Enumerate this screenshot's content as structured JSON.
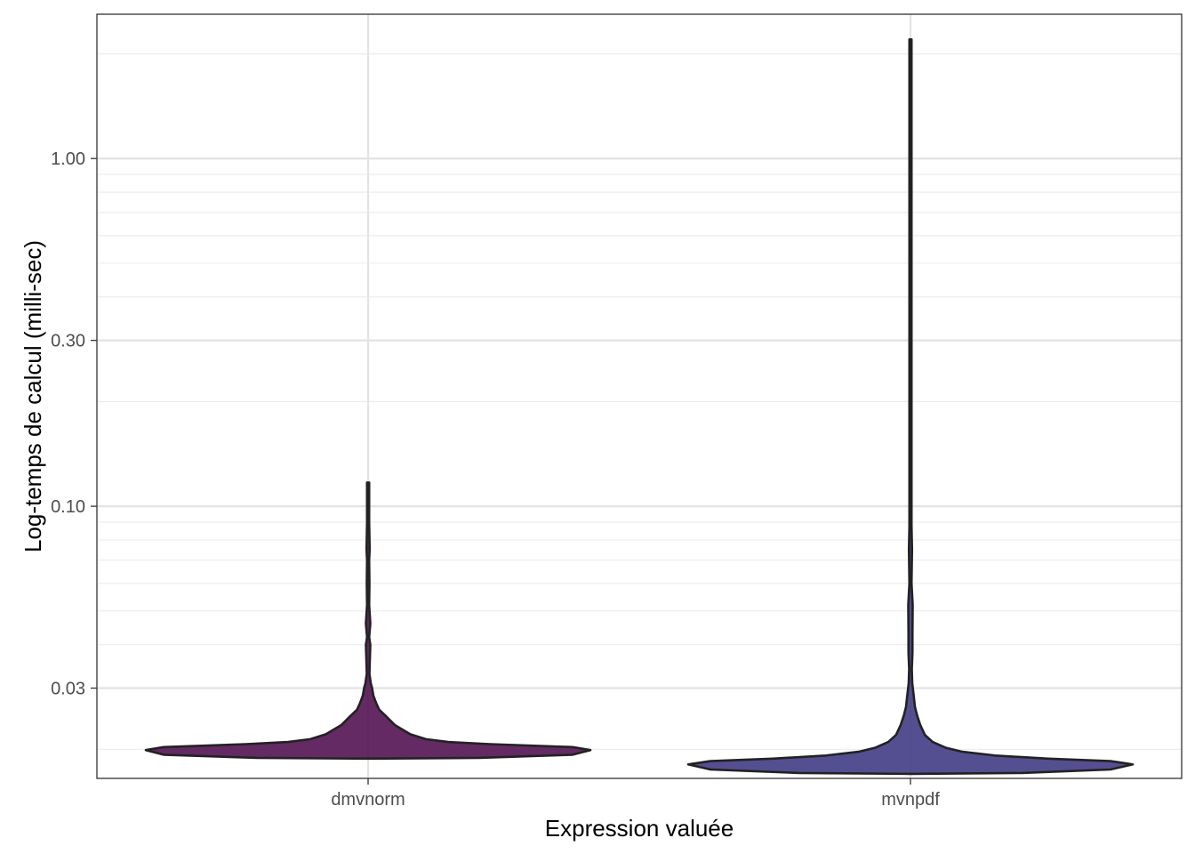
{
  "chart_data": {
    "type": "violin",
    "title": "",
    "xlabel": "Expression valuée",
    "ylabel": "Log-temps de calcul (milli-sec)",
    "y_scale": "log10",
    "ylim": [
      0.0165,
      2.6
    ],
    "yticks": [
      0.03,
      0.1,
      0.3,
      1.0
    ],
    "ytick_labels": [
      "0.03",
      "0.10",
      "0.30",
      "1.00"
    ],
    "y_minor_gridlines": [
      0.02,
      0.04,
      0.05,
      0.06,
      0.07,
      0.08,
      0.09,
      0.2,
      0.4,
      0.5,
      0.6,
      0.7,
      0.8,
      0.9,
      2.0
    ],
    "grid": true,
    "legend": "none",
    "categories": [
      "dmvnorm",
      "mvnpdf"
    ],
    "series": [
      {
        "category": "dmvnorm",
        "color": "#4e0c4f",
        "y_min": 0.0188,
        "y_max": 0.117,
        "density_profile": [
          [
            0.0188,
            0.0
          ],
          [
            0.0189,
            0.5
          ],
          [
            0.0193,
            0.92
          ],
          [
            0.0199,
            1.0
          ],
          [
            0.0203,
            0.92
          ],
          [
            0.0207,
            0.55
          ],
          [
            0.021,
            0.36
          ],
          [
            0.0214,
            0.26
          ],
          [
            0.0221,
            0.19
          ],
          [
            0.0235,
            0.12
          ],
          [
            0.025,
            0.078
          ],
          [
            0.026,
            0.05
          ],
          [
            0.0272,
            0.036
          ],
          [
            0.0285,
            0.024
          ],
          [
            0.03,
            0.018
          ],
          [
            0.031,
            0.012
          ],
          [
            0.033,
            0.006
          ],
          [
            0.04,
            0.01
          ],
          [
            0.042,
            0.004
          ],
          [
            0.046,
            0.01
          ],
          [
            0.052,
            0.004
          ],
          [
            0.06,
            0.006
          ],
          [
            0.07,
            0.004
          ],
          [
            0.075,
            0.007
          ],
          [
            0.09,
            0.004
          ],
          [
            0.117,
            0.004
          ]
        ]
      },
      {
        "category": "mvnpdf",
        "color": "#3c3782",
        "y_min": 0.017,
        "y_max": 2.2,
        "density_profile": [
          [
            0.017,
            0.0
          ],
          [
            0.0171,
            0.5
          ],
          [
            0.0175,
            0.9
          ],
          [
            0.0181,
            1.0
          ],
          [
            0.0185,
            0.9
          ],
          [
            0.0188,
            0.62
          ],
          [
            0.0192,
            0.38
          ],
          [
            0.0197,
            0.23
          ],
          [
            0.0202,
            0.16
          ],
          [
            0.021,
            0.1
          ],
          [
            0.022,
            0.065
          ],
          [
            0.0235,
            0.044
          ],
          [
            0.025,
            0.03
          ],
          [
            0.0265,
            0.02
          ],
          [
            0.028,
            0.016
          ],
          [
            0.0295,
            0.012
          ],
          [
            0.031,
            0.008
          ],
          [
            0.034,
            0.006
          ],
          [
            0.038,
            0.009
          ],
          [
            0.043,
            0.009
          ],
          [
            0.052,
            0.01
          ],
          [
            0.06,
            0.004
          ],
          [
            0.075,
            0.007
          ],
          [
            0.088,
            0.004
          ],
          [
            0.1,
            0.003
          ],
          [
            0.5,
            0.003
          ],
          [
            2.2,
            0.003
          ]
        ]
      }
    ]
  }
}
